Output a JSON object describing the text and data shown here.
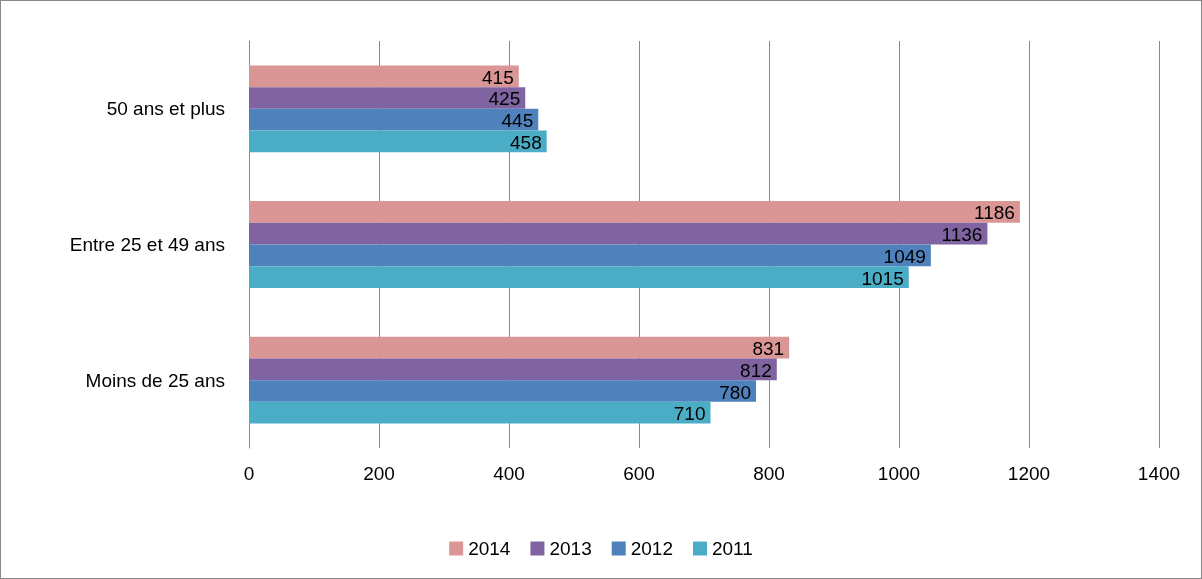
{
  "chart_data": {
    "type": "bar",
    "orientation": "horizontal",
    "categories": [
      "50 ans et plus",
      "Entre 25 et 49 ans",
      "Moins de 25 ans"
    ],
    "series": [
      {
        "name": "2014",
        "color": "#d99694",
        "values": [
          415,
          1186,
          831
        ]
      },
      {
        "name": "2013",
        "color": "#8064a2",
        "values": [
          425,
          1136,
          812
        ]
      },
      {
        "name": "2012",
        "color": "#4f81bd",
        "values": [
          445,
          1049,
          780
        ]
      },
      {
        "name": "2011",
        "color": "#4bacc6",
        "values": [
          458,
          1015,
          710
        ]
      }
    ],
    "xlim": [
      0,
      1400
    ],
    "xticks": [
      0,
      200,
      400,
      600,
      800,
      1000,
      1200,
      1400
    ],
    "grid": "x",
    "legend": "bottom",
    "data_labels": true
  }
}
